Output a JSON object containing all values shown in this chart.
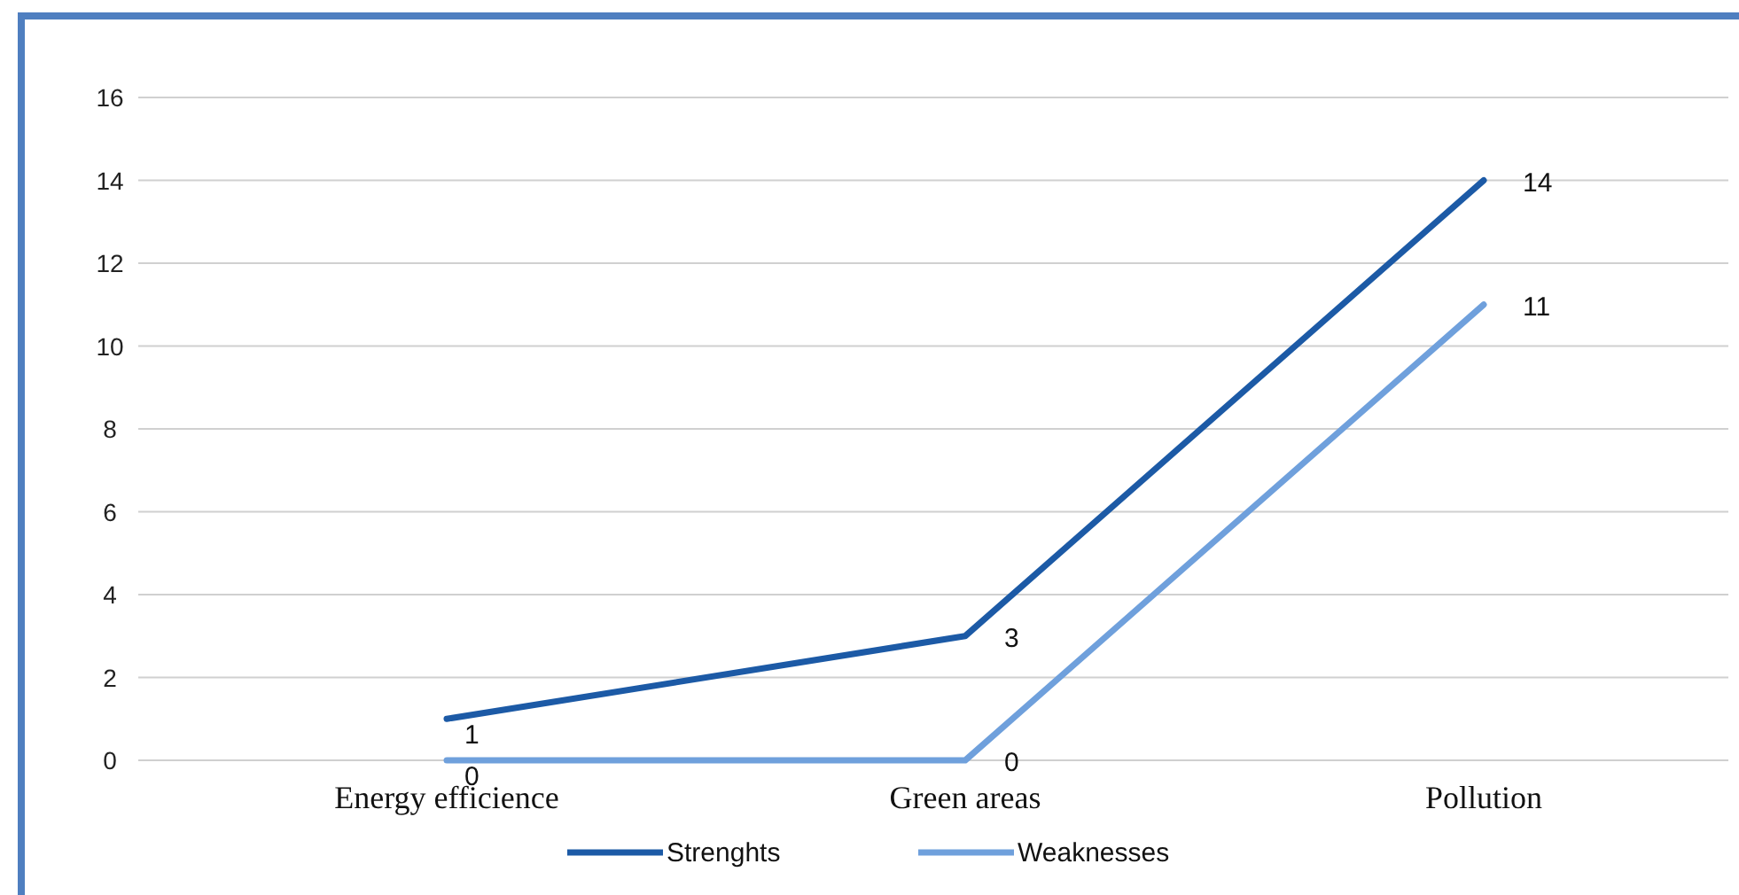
{
  "chart_data": {
    "type": "line",
    "categories": [
      "Energy efficience",
      "Green areas",
      "Pollution"
    ],
    "series": [
      {
        "name": "Strenghts",
        "color": "#1c5aa6",
        "values": [
          1,
          3,
          14
        ]
      },
      {
        "name": "Weaknesses",
        "color": "#6fa0dc",
        "values": [
          0,
          0,
          11
        ]
      }
    ],
    "ylim": [
      0,
      16
    ],
    "yticks": [
      0,
      2,
      4,
      6,
      8,
      10,
      12,
      14,
      16
    ],
    "grid": "y",
    "legend": "bottom",
    "data_labels": true,
    "marker": "none",
    "line_style": "solid"
  }
}
